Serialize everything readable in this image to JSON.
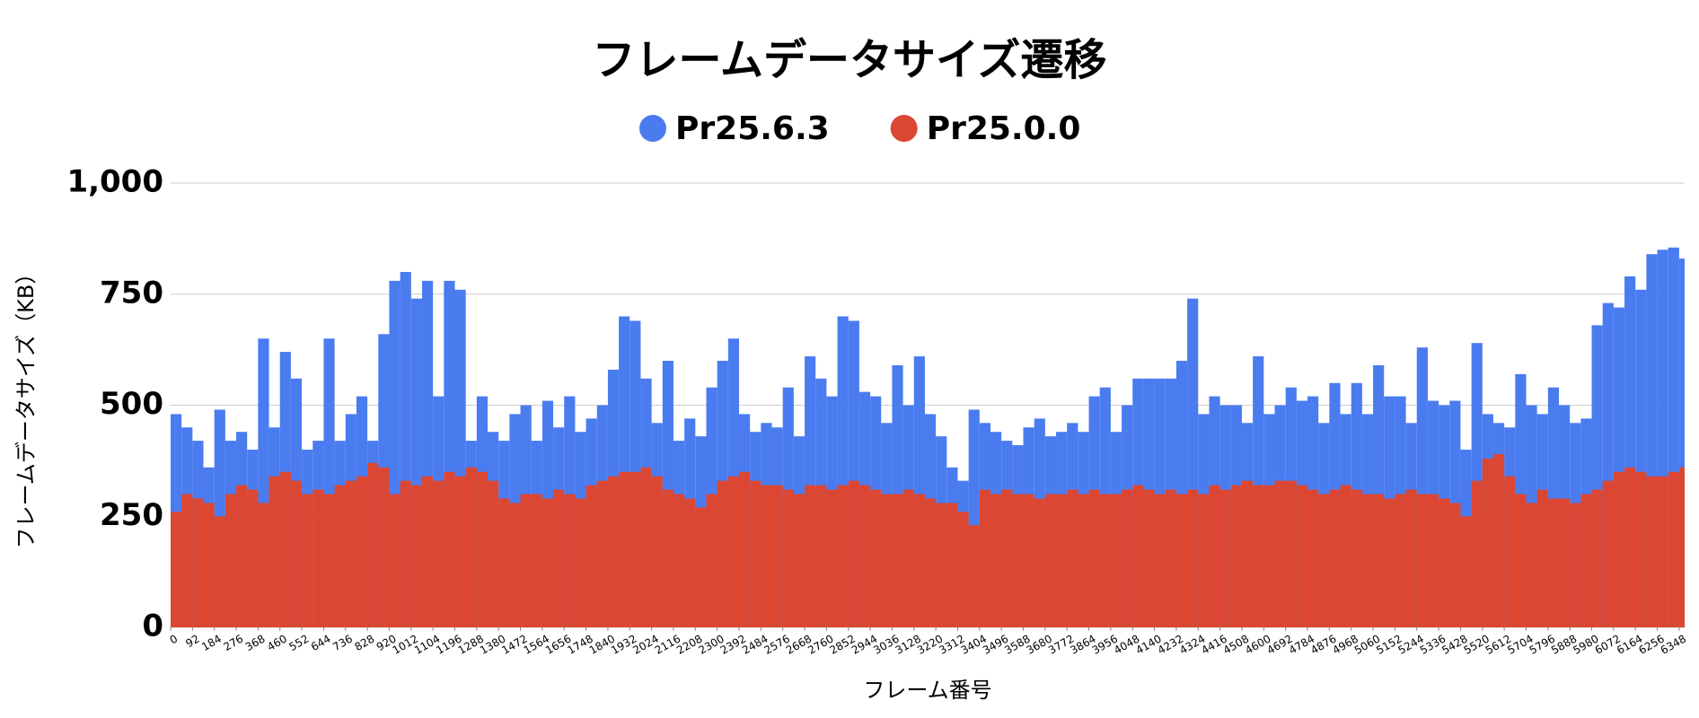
{
  "chart_data": {
    "type": "bar",
    "title": "フレームデータサイズ遷移",
    "y_label": "フレームデータサイズ（KB）",
    "x_label": "フレーム番号",
    "grid": true,
    "legend_position": "top",
    "ylim": [
      0,
      1000
    ],
    "yticks": [
      0,
      250,
      500,
      750,
      {
        "value": 1000,
        "label": "1,000"
      }
    ],
    "xlim": [
      0,
      6371
    ],
    "xticks": [
      0,
      92,
      184,
      276,
      368,
      460,
      552,
      644,
      736,
      828,
      920,
      1012,
      1104,
      1196,
      1288,
      1380,
      1472,
      1564,
      1656,
      1748,
      1840,
      1932,
      2024,
      2116,
      2208,
      2300,
      2392,
      2484,
      2576,
      2668,
      2760,
      2852,
      2944,
      3036,
      3128,
      3220,
      3312,
      3404,
      3496,
      3588,
      3680,
      3772,
      3864,
      3956,
      4048,
      4140,
      4232,
      4324,
      4416,
      4508,
      4600,
      4692,
      4784,
      4876,
      4968,
      5060,
      5152,
      5244,
      5336,
      5428,
      5520,
      5612,
      5704,
      5796,
      5888,
      5980,
      6072,
      6164,
      6256,
      6348
    ],
    "x": [
      0,
      46,
      92,
      138,
      184,
      230,
      276,
      322,
      368,
      414,
      460,
      506,
      552,
      598,
      644,
      690,
      736,
      782,
      828,
      874,
      920,
      966,
      1012,
      1058,
      1104,
      1150,
      1196,
      1242,
      1288,
      1334,
      1380,
      1426,
      1472,
      1518,
      1564,
      1610,
      1656,
      1702,
      1748,
      1794,
      1840,
      1886,
      1932,
      1978,
      2024,
      2070,
      2116,
      2162,
      2208,
      2254,
      2300,
      2346,
      2392,
      2438,
      2484,
      2530,
      2576,
      2622,
      2668,
      2714,
      2760,
      2806,
      2852,
      2898,
      2944,
      2990,
      3036,
      3082,
      3128,
      3174,
      3220,
      3266,
      3312,
      3358,
      3404,
      3450,
      3496,
      3542,
      3588,
      3634,
      3680,
      3726,
      3772,
      3818,
      3864,
      3910,
      3956,
      4002,
      4048,
      4094,
      4140,
      4186,
      4232,
      4278,
      4324,
      4370,
      4416,
      4462,
      4508,
      4554,
      4600,
      4646,
      4692,
      4738,
      4784,
      4830,
      4876,
      4922,
      4968,
      5014,
      5060,
      5106,
      5152,
      5198,
      5244,
      5290,
      5336,
      5382,
      5428,
      5474,
      5520,
      5566,
      5612,
      5658,
      5704,
      5750,
      5796,
      5842,
      5888,
      5934,
      5980,
      6026,
      6072,
      6118,
      6164,
      6210,
      6256,
      6302,
      6348
    ],
    "series": [
      {
        "name": "Pr25.6.3",
        "color": "#4a7cf0",
        "values": [
          480,
          450,
          420,
          360,
          490,
          420,
          440,
          400,
          650,
          450,
          620,
          560,
          400,
          420,
          650,
          420,
          480,
          520,
          420,
          660,
          780,
          800,
          740,
          780,
          520,
          780,
          760,
          420,
          520,
          440,
          420,
          480,
          500,
          420,
          510,
          450,
          520,
          440,
          470,
          500,
          580,
          700,
          690,
          560,
          460,
          600,
          420,
          470,
          430,
          540,
          600,
          650,
          480,
          440,
          460,
          450,
          540,
          430,
          610,
          560,
          520,
          700,
          690,
          530,
          520,
          460,
          590,
          500,
          610,
          480,
          430,
          360,
          330,
          490,
          460,
          440,
          420,
          410,
          450,
          470,
          430,
          440,
          460,
          440,
          520,
          540,
          440,
          500,
          560,
          560,
          560,
          560,
          600,
          740,
          480,
          520,
          500,
          500,
          460,
          610,
          480,
          500,
          540,
          510,
          520,
          460,
          550,
          480,
          550,
          480,
          590,
          520,
          520,
          460,
          630,
          510,
          500,
          510,
          400,
          640,
          480,
          460,
          450,
          570,
          500,
          480,
          540,
          500,
          460,
          470,
          680,
          730,
          720,
          790,
          760,
          840,
          850,
          855,
          830
        ]
      },
      {
        "name": "Pr25.0.0",
        "color": "#db4733",
        "values": [
          260,
          300,
          290,
          280,
          250,
          300,
          320,
          310,
          280,
          340,
          350,
          330,
          300,
          310,
          300,
          320,
          330,
          340,
          370,
          360,
          300,
          330,
          320,
          340,
          330,
          350,
          340,
          360,
          350,
          330,
          290,
          280,
          300,
          300,
          290,
          310,
          300,
          290,
          320,
          330,
          340,
          350,
          350,
          360,
          340,
          310,
          300,
          290,
          270,
          300,
          330,
          340,
          350,
          330,
          320,
          320,
          310,
          300,
          320,
          320,
          310,
          320,
          330,
          320,
          310,
          300,
          300,
          310,
          300,
          290,
          280,
          280,
          260,
          230,
          310,
          300,
          310,
          300,
          300,
          290,
          300,
          300,
          310,
          300,
          310,
          300,
          300,
          310,
          320,
          310,
          300,
          310,
          300,
          310,
          300,
          320,
          310,
          320,
          330,
          320,
          320,
          330,
          330,
          320,
          310,
          300,
          310,
          320,
          310,
          300,
          300,
          290,
          300,
          310,
          300,
          300,
          290,
          280,
          250,
          330,
          380,
          390,
          340,
          300,
          280,
          310,
          290,
          290,
          280,
          300,
          310,
          330,
          350,
          360,
          350,
          340,
          340,
          350,
          360
        ]
      }
    ]
  }
}
